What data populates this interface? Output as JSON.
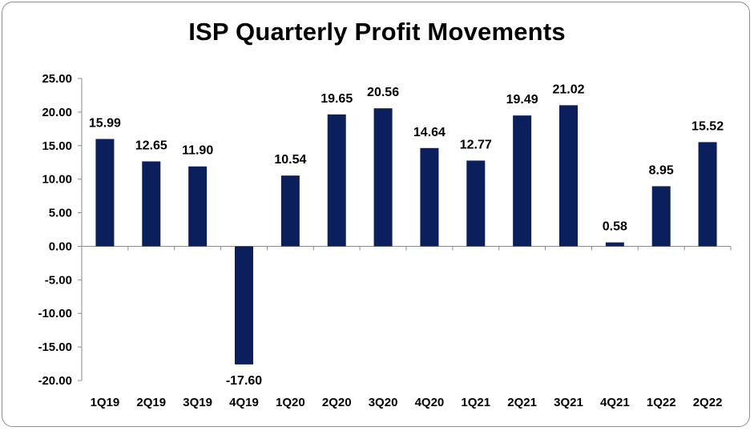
{
  "chart_data": {
    "type": "bar",
    "title": "ISP Quarterly Profit Movements",
    "xlabel": "",
    "ylabel": "",
    "categories": [
      "1Q19",
      "2Q19",
      "3Q19",
      "4Q19",
      "1Q20",
      "2Q20",
      "3Q20",
      "4Q20",
      "1Q21",
      "2Q21",
      "3Q21",
      "4Q21",
      "1Q22",
      "2Q22"
    ],
    "values": [
      15.99,
      12.65,
      11.9,
      -17.6,
      10.54,
      19.65,
      20.56,
      14.64,
      12.77,
      19.49,
      21.02,
      0.58,
      8.95,
      15.52
    ],
    "value_labels": [
      "15.99",
      "12.65",
      "11.90",
      "-17.60",
      "10.54",
      "19.65",
      "20.56",
      "14.64",
      "12.77",
      "19.49",
      "21.02",
      "0.58",
      "8.95",
      "15.52"
    ],
    "ylim": [
      -20,
      25
    ],
    "y_ticks": [
      25,
      20,
      15,
      10,
      5,
      0,
      -5,
      -10,
      -15,
      -20
    ],
    "y_tick_labels": [
      "25.00",
      "20.00",
      "15.00",
      "10.00",
      "5.00",
      "0.00",
      "-5.00",
      "-10.00",
      "-15.00",
      "-20.00"
    ],
    "grid": false,
    "legend": "none",
    "bar_color": "#0a1f5c"
  }
}
